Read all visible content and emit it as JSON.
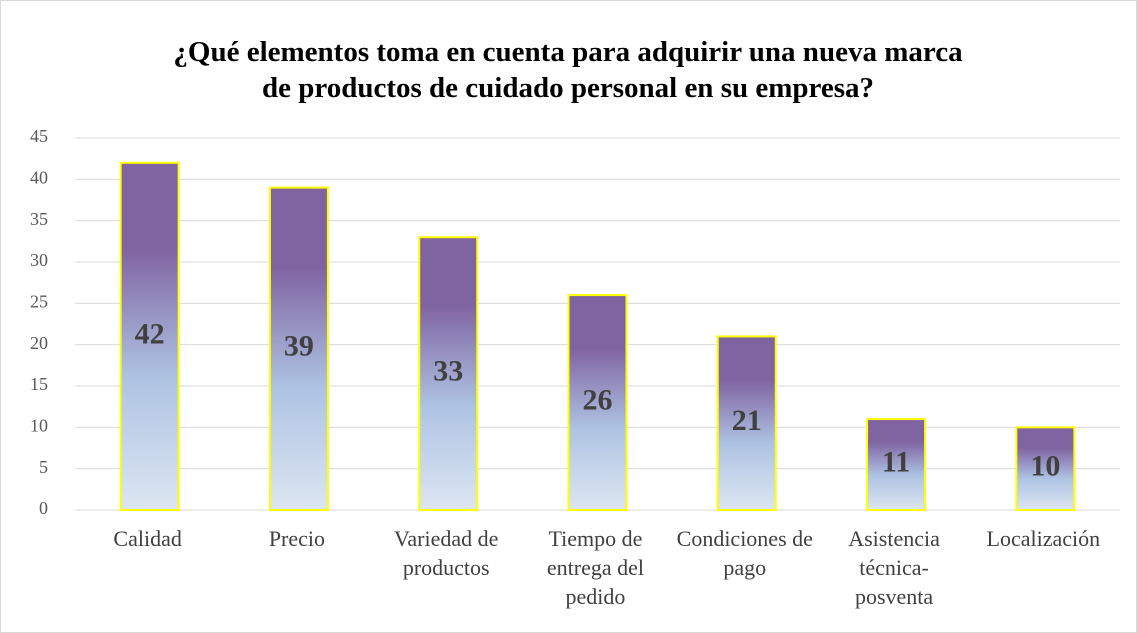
{
  "chart_data": {
    "type": "bar",
    "title": "¿Qué elementos toma en cuenta para adquirir una nueva marca de productos de cuidado personal en su empresa?",
    "categories": [
      "Calidad",
      "Precio",
      "Variedad de productos",
      "Tiempo de entrega del pedido",
      "Condiciones de pago",
      "Asistencia técnica-posventa",
      "Localización"
    ],
    "values": [
      42,
      39,
      33,
      26,
      21,
      11,
      10
    ],
    "color": "#8064a2",
    "ylim": [
      0,
      45
    ],
    "yticks": [
      0,
      5,
      10,
      15,
      20,
      25,
      30,
      35,
      40,
      45
    ],
    "grid": true
  }
}
